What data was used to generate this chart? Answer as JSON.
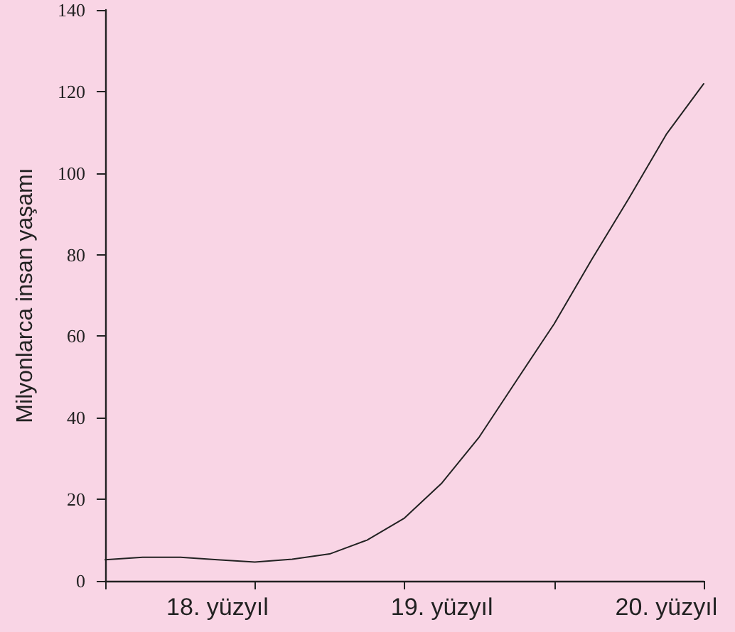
{
  "chart_data": {
    "type": "line",
    "ylabel": "Milyonlarca insan yaşamı",
    "categories": [
      null,
      null,
      null,
      "18. yüzyıl",
      null,
      null,
      null,
      null,
      null,
      "19. yüzyıl",
      null,
      null,
      null,
      null,
      null,
      "20. yüzyıl",
      null
    ],
    "series": [
      {
        "color": "#222222",
        "values": [
          5.2,
          5.8,
          5.8,
          5.2,
          4.6,
          5.3,
          6.6,
          10.0,
          15.4,
          24.0,
          35.3,
          49.2,
          63.0,
          78.7,
          93.8,
          109.5,
          121.9
        ]
      }
    ],
    "ylim": [
      0,
      140
    ],
    "yticks": [
      0,
      20,
      40,
      60,
      80,
      100,
      120,
      140
    ],
    "grid": false,
    "marker": "none",
    "line_style": "solid"
  }
}
